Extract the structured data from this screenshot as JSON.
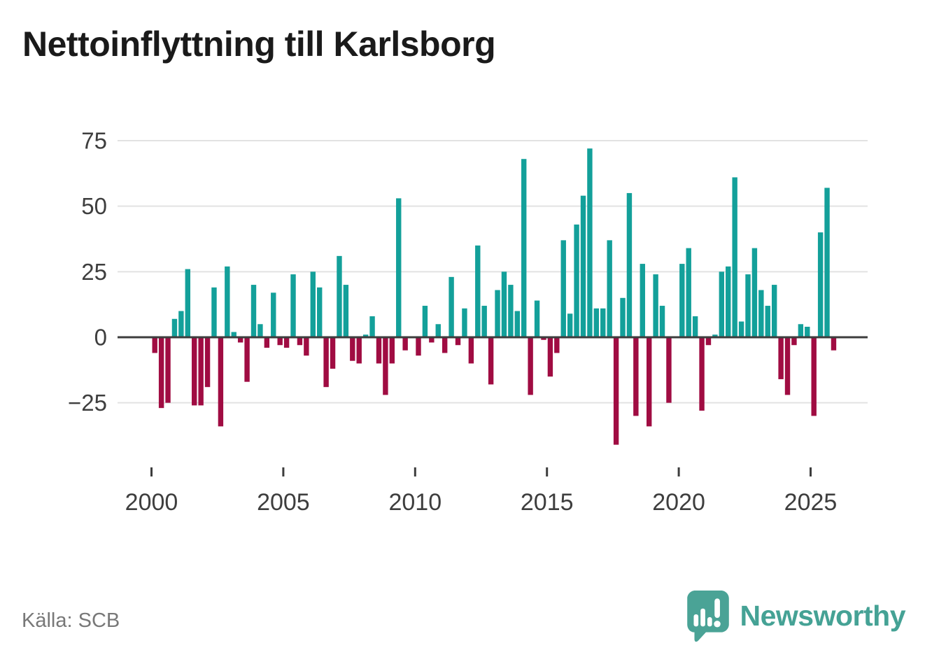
{
  "title": "Nettoinflyttning till Karlsborg",
  "source": "Källa: SCB",
  "logo": {
    "text": "Newsworthy"
  },
  "colors": {
    "positive": "#13a09a",
    "negative": "#a00c42",
    "axis": "#3d3d3d",
    "grid": "#e2e2e2",
    "tick_label": "#3e3e3e",
    "title_text": "#1a1a1a",
    "source_text": "#787878",
    "logo_teal": "#45a295"
  },
  "y_axis": {
    "ticks": [
      {
        "label": "75",
        "value": 75
      },
      {
        "label": "50",
        "value": 50
      },
      {
        "label": "25",
        "value": 25
      },
      {
        "label": "0",
        "value": 0
      },
      {
        "label": "−25",
        "value": -25
      }
    ]
  },
  "x_axis": {
    "ticks": [
      {
        "label": "2000",
        "year": 2000
      },
      {
        "label": "2005",
        "year": 2005
      },
      {
        "label": "2010",
        "year": 2010
      },
      {
        "label": "2015",
        "year": 2015
      },
      {
        "label": "2020",
        "year": 2020
      },
      {
        "label": "2025",
        "year": 2025
      }
    ]
  },
  "chart_data": {
    "type": "bar",
    "title": "Nettoinflyttning till Karlsborg",
    "frequency": "quarterly",
    "start_year": 2000,
    "start_quarter": 1,
    "end_year": 2025,
    "end_quarter": 4,
    "xlabel": "",
    "ylabel": "",
    "ylim": [
      -45,
      80
    ],
    "grid": "horizontal",
    "zero_axis": true,
    "legend": "none",
    "values": [
      -6,
      -27,
      -25,
      7,
      10,
      26,
      -26,
      -26,
      -19,
      19,
      -34,
      27,
      2,
      -2,
      -17,
      20,
      5,
      -4,
      17,
      -3,
      -4,
      24,
      -3,
      -7,
      25,
      19,
      -19,
      -12,
      31,
      20,
      -9,
      -10,
      1,
      8,
      -10,
      -22,
      -10,
      53,
      -5,
      0,
      -7,
      12,
      -2,
      5,
      -6,
      23,
      -3,
      11,
      -10,
      35,
      12,
      -18,
      18,
      25,
      20,
      10,
      68,
      -22,
      14,
      -1,
      -15,
      -6,
      37,
      9,
      43,
      54,
      72,
      11,
      11,
      37,
      -41,
      15,
      55,
      -30,
      28,
      -34,
      24,
      12,
      -25,
      0,
      28,
      34,
      8,
      -28,
      -3,
      1,
      25,
      27,
      61,
      6,
      24,
      34,
      18,
      12,
      20,
      -16,
      -22,
      -3,
      5,
      4,
      -30,
      40,
      57,
      -5
    ]
  }
}
